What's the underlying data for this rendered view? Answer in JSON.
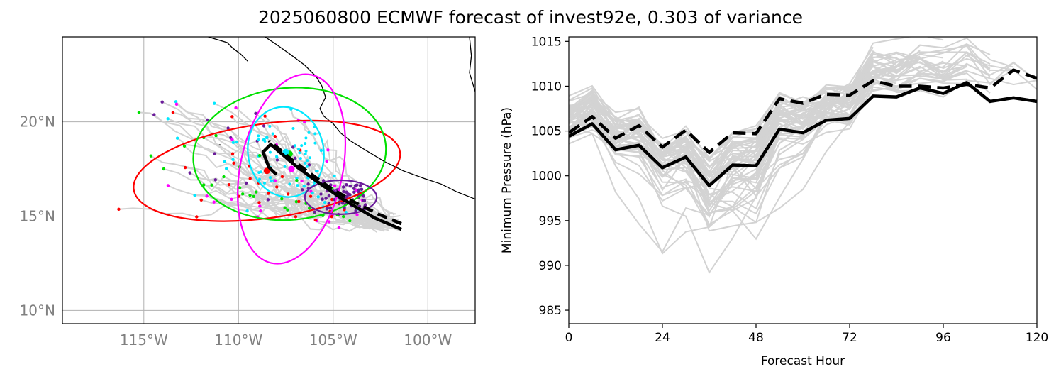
{
  "title": "2025060800 ECMWF forecast of invest92e, 0.303 of variance",
  "chart_data": [
    {
      "type": "map",
      "lon_range": [
        -119.3,
        -97.5
      ],
      "lat_range": [
        9.3,
        24.5
      ],
      "lon_ticks": [
        {
          "value": -115,
          "label": "115°W"
        },
        {
          "value": -110,
          "label": "110°W"
        },
        {
          "value": -105,
          "label": "105°W"
        },
        {
          "value": -100,
          "label": "100°W"
        }
      ],
      "lat_ticks": [
        {
          "value": 10,
          "label": "10°N"
        },
        {
          "value": 15,
          "label": "15°N"
        },
        {
          "value": 20,
          "label": "20°N"
        }
      ],
      "grid": true,
      "coastlines": [
        [
          [
            -111.6,
            24.5
          ],
          [
            -110.6,
            24.2
          ],
          [
            -110.3,
            23.9
          ],
          [
            -109.9,
            23.6
          ],
          [
            -109.5,
            23.2
          ]
        ],
        [
          [
            -108.6,
            24.5
          ],
          [
            -108.0,
            24.1
          ],
          [
            -107.3,
            23.6
          ],
          [
            -106.5,
            23.0
          ],
          [
            -105.9,
            22.4
          ],
          [
            -105.6,
            21.9
          ],
          [
            -105.4,
            21.3
          ],
          [
            -105.7,
            20.7
          ],
          [
            -105.5,
            20.3
          ],
          [
            -105.0,
            19.9
          ],
          [
            -104.6,
            19.4
          ],
          [
            -104.1,
            19.0
          ],
          [
            -103.3,
            18.5
          ],
          [
            -102.3,
            17.9
          ],
          [
            -101.3,
            17.4
          ],
          [
            -100.2,
            17.0
          ],
          [
            -99.3,
            16.7
          ],
          [
            -98.5,
            16.3
          ],
          [
            -97.5,
            15.9
          ]
        ],
        [
          [
            -97.8,
            24.5
          ],
          [
            -97.7,
            23.5
          ],
          [
            -97.8,
            22.6
          ],
          [
            -97.5,
            21.6
          ]
        ]
      ],
      "islands": [
        [
          -111.0,
          18.75
        ]
      ],
      "ensemble_tracks_count": 51,
      "mean_track": [
        [
          -101.4,
          14.3
        ],
        [
          -102.8,
          14.9
        ],
        [
          -104.5,
          15.9
        ],
        [
          -105.8,
          16.8
        ],
        [
          -106.9,
          17.6
        ],
        [
          -107.6,
          18.2
        ],
        [
          -108.3,
          18.8
        ],
        [
          -108.7,
          18.4
        ],
        [
          -108.4,
          17.6
        ],
        [
          -108.0,
          17.2
        ]
      ],
      "control_track": [
        [
          -101.4,
          14.6
        ],
        [
          -102.6,
          15.1
        ],
        [
          -104.0,
          15.8
        ],
        [
          -105.3,
          16.6
        ],
        [
          -106.4,
          17.4
        ],
        [
          -107.2,
          18.0
        ],
        [
          -107.9,
          18.6
        ],
        [
          -108.4,
          19.0
        ]
      ],
      "ellipses": [
        {
          "color": "#ff0000",
          "center": [
            -108.5,
            17.4
          ],
          "semi_lon": 7.1,
          "semi_lat": 2.5,
          "angle_deg": -8
        },
        {
          "color": "#00e000",
          "center": [
            -107.3,
            18.3
          ],
          "semi_lon": 5.1,
          "semi_lat": 3.5,
          "angle_deg": -5
        },
        {
          "color": "#ff00ff",
          "center": [
            -107.2,
            17.5
          ],
          "semi_lon": 2.7,
          "semi_lat": 5.1,
          "angle_deg": 12
        },
        {
          "color": "#00e8ff",
          "center": [
            -107.5,
            18.4
          ],
          "semi_lon": 2.0,
          "semi_lat": 2.4,
          "angle_deg": -10
        },
        {
          "color": "#6a1b9a",
          "center": [
            -104.6,
            16.0
          ],
          "semi_lon": 1.9,
          "semi_lat": 0.9,
          "angle_deg": 0
        }
      ],
      "point_colors": [
        "#ff0000",
        "#00e000",
        "#ff00ff",
        "#00e8ff",
        "#6a1b9a"
      ],
      "colors": {
        "ensemble": "#d3d3d3",
        "mean": "#000000",
        "grid": "#b0b0b0"
      }
    },
    {
      "type": "line",
      "xlabel": "Forecast Hour",
      "ylabel": "Minimum Pressure (hPa)",
      "xlim": [
        0,
        120
      ],
      "ylim": [
        983.5,
        1015.5
      ],
      "x_ticks": [
        0,
        24,
        48,
        72,
        96,
        120
      ],
      "y_ticks": [
        985,
        990,
        995,
        1000,
        1005,
        1010,
        1015
      ],
      "x": [
        0,
        6,
        12,
        18,
        24,
        30,
        36,
        42,
        48,
        54,
        60,
        66,
        72,
        78,
        84,
        90,
        96,
        102,
        108,
        114,
        120
      ],
      "series": [
        {
          "style": "solid",
          "color": "#000000",
          "values": [
            1004.4,
            1005.8,
            1002.9,
            1003.4,
            1000.9,
            1002.1,
            998.9,
            1001.2,
            1001.1,
            1005.2,
            1004.8,
            1006.2,
            1006.4,
            1008.9,
            1008.8,
            1009.8,
            1009.2,
            1010.4,
            1008.3,
            1008.7,
            1008.3
          ]
        },
        {
          "style": "dashed",
          "color": "#000000",
          "values": [
            1004.8,
            1006.6,
            1004.2,
            1005.6,
            1003.2,
            1005.1,
            1002.6,
            1004.8,
            1004.7,
            1008.6,
            1008.1,
            1009.1,
            1009.0,
            1010.6,
            1010.0,
            1010.0,
            1009.8,
            1010.2,
            1009.8,
            1011.8,
            1010.9
          ]
        }
      ],
      "ensemble_color": "#d3d3d3"
    }
  ]
}
